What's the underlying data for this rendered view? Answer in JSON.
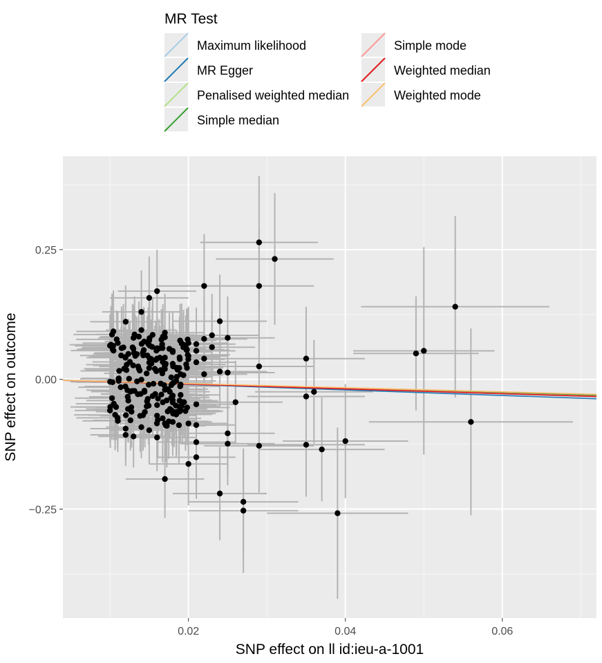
{
  "chart_data": {
    "type": "scatter",
    "xlabel": "SNP effect on  ll id:ieu-a-1001",
    "ylabel": "SNP effect on outcome",
    "xlim": [
      0.004,
      0.072
    ],
    "ylim": [
      -0.46,
      0.43
    ],
    "x_ticks": [
      {
        "value": 0.02,
        "label": "0.02"
      },
      {
        "value": 0.04,
        "label": "0.04"
      },
      {
        "value": 0.06,
        "label": "0.06"
      }
    ],
    "y_ticks": [
      {
        "value": 0.25,
        "label": "0.25"
      },
      {
        "value": 0.0,
        "label": "0.00"
      },
      {
        "value": -0.25,
        "label": "−0.25"
      }
    ],
    "legend": {
      "title": "MR Test",
      "position": "top"
    },
    "series": [
      {
        "name": "Maximum likelihood",
        "color": "#a6cee3",
        "slope": -0.47
      },
      {
        "name": "MR Egger",
        "color": "#1f78b4",
        "slope": -0.53,
        "intercept": 0.0008
      },
      {
        "name": "Penalised weighted median",
        "color": "#b2df8a",
        "slope": -0.44
      },
      {
        "name": "Simple median",
        "color": "#33a02c",
        "slope": -0.43
      },
      {
        "name": "Simple mode",
        "color": "#fb9a99",
        "slope": -0.45
      },
      {
        "name": "Weighted median",
        "color": "#e31a1c",
        "slope": -0.46
      },
      {
        "name": "Weighted mode",
        "color": "#fdbf6f",
        "slope": -0.4
      }
    ],
    "points": [
      [
        0.029,
        0.264,
        0.128,
        0.0075
      ],
      [
        0.031,
        0.232,
        0.127,
        0.0075
      ],
      [
        0.016,
        0.17,
        0.08,
        0.005
      ],
      [
        0.022,
        0.18,
        0.1,
        0.006
      ],
      [
        0.029,
        0.18,
        0.11,
        0.007
      ],
      [
        0.015,
        0.157,
        0.08,
        0.005
      ],
      [
        0.014,
        0.13,
        0.08,
        0.005
      ],
      [
        0.012,
        0.111,
        0.07,
        0.0045
      ],
      [
        0.024,
        0.112,
        0.09,
        0.006
      ],
      [
        0.054,
        0.14,
        0.175,
        0.012
      ],
      [
        0.049,
        0.05,
        0.11,
        0.008
      ],
      [
        0.05,
        0.055,
        0.2,
        0.009
      ],
      [
        0.035,
        0.04,
        0.1,
        0.0075
      ],
      [
        0.029,
        0.025,
        0.09,
        0.007
      ],
      [
        0.017,
        0.09,
        0.075,
        0.005
      ],
      [
        0.023,
        0.085,
        0.08,
        0.006
      ],
      [
        0.022,
        0.078,
        0.08,
        0.0055
      ],
      [
        0.025,
        0.08,
        0.08,
        0.006
      ],
      [
        0.02,
        0.07,
        0.07,
        0.005
      ],
      [
        0.021,
        0.068,
        0.07,
        0.005
      ],
      [
        0.023,
        0.062,
        0.07,
        0.0055
      ],
      [
        0.021,
        0.055,
        0.07,
        0.005
      ],
      [
        0.022,
        0.04,
        0.07,
        0.0055
      ],
      [
        0.024,
        0.015,
        0.07,
        0.006
      ],
      [
        0.025,
        0.013,
        0.07,
        0.006
      ],
      [
        0.022,
        0.01,
        0.07,
        0.0055
      ],
      [
        0.021,
        0.033,
        0.07,
        0.005
      ],
      [
        0.02,
        0.045,
        0.07,
        0.005
      ],
      [
        0.036,
        -0.024,
        0.1,
        0.0075
      ],
      [
        0.035,
        -0.033,
        0.1,
        0.0075
      ],
      [
        0.026,
        -0.044,
        0.08,
        0.006
      ],
      [
        0.021,
        -0.048,
        0.07,
        0.005
      ],
      [
        0.056,
        -0.082,
        0.18,
        0.013
      ],
      [
        0.021,
        -0.088,
        0.07,
        0.005
      ],
      [
        0.025,
        -0.104,
        0.08,
        0.006
      ],
      [
        0.025,
        -0.124,
        0.08,
        0.006
      ],
      [
        0.029,
        -0.128,
        0.09,
        0.007
      ],
      [
        0.035,
        -0.126,
        0.1,
        0.0075
      ],
      [
        0.037,
        -0.135,
        0.1,
        0.008
      ],
      [
        0.04,
        -0.119,
        0.11,
        0.008
      ],
      [
        0.021,
        -0.121,
        0.07,
        0.005
      ],
      [
        0.021,
        -0.15,
        0.08,
        0.005
      ],
      [
        0.02,
        -0.163,
        0.08,
        0.005
      ],
      [
        0.017,
        -0.192,
        0.075,
        0.005
      ],
      [
        0.024,
        -0.22,
        0.09,
        0.006
      ],
      [
        0.027,
        -0.236,
        0.1,
        0.007
      ],
      [
        0.027,
        -0.253,
        0.12,
        0.007
      ],
      [
        0.039,
        -0.258,
        0.165,
        0.009
      ],
      [
        0.016,
        -0.112,
        0.065,
        0.005
      ],
      [
        0.015,
        -0.098,
        0.065,
        0.005
      ],
      [
        0.013,
        -0.11,
        0.06,
        0.0045
      ],
      [
        0.012,
        -0.107,
        0.06,
        0.0045
      ],
      [
        0.014,
        -0.092,
        0.06,
        0.0045
      ],
      [
        0.017,
        -0.085,
        0.065,
        0.005
      ],
      [
        0.018,
        -0.082,
        0.065,
        0.005
      ],
      [
        0.02,
        -0.085,
        0.065,
        0.005
      ],
      [
        0.016,
        -0.07,
        0.065,
        0.005
      ],
      [
        0.019,
        -0.06,
        0.065,
        0.005
      ],
      [
        0.018,
        -0.04,
        0.06,
        0.005
      ],
      [
        0.019,
        -0.03,
        0.06,
        0.005
      ],
      [
        0.017,
        0.02,
        0.06,
        0.005
      ],
      [
        0.018,
        0.03,
        0.06,
        0.005
      ],
      [
        0.019,
        0.01,
        0.06,
        0.005
      ],
      [
        0.019,
        -0.01,
        0.06,
        0.005
      ],
      [
        0.017,
        -0.02,
        0.06,
        0.005
      ],
      [
        0.016,
        0.06,
        0.06,
        0.005
      ],
      [
        0.015,
        0.075,
        0.06,
        0.005
      ],
      [
        0.014,
        0.095,
        0.06,
        0.0045
      ],
      [
        0.016,
        0.04,
        0.06,
        0.005
      ],
      [
        0.018,
        0.055,
        0.06,
        0.005
      ],
      [
        0.017,
        0.042,
        0.06,
        0.005
      ],
      [
        0.013,
        0.08,
        0.06,
        0.0045
      ],
      [
        0.011,
        0.07,
        0.06,
        0.0045
      ],
      [
        0.01,
        0.065,
        0.06,
        0.0045
      ],
      [
        0.01,
        -0.06,
        0.06,
        0.0045
      ],
      [
        0.011,
        -0.08,
        0.06,
        0.0045
      ],
      [
        0.012,
        -0.095,
        0.06,
        0.0045
      ]
    ]
  },
  "legend_entries": [
    "Maximum likelihood",
    "MR Egger",
    "Penalised weighted median",
    "Simple median",
    "Simple mode",
    "Weighted median",
    "Weighted mode"
  ]
}
